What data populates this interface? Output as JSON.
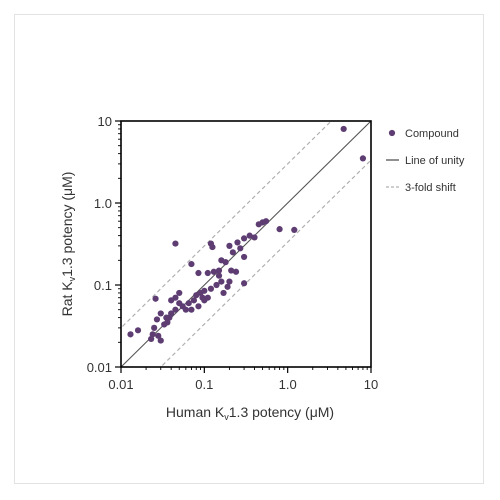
{
  "chart_data": {
    "type": "scatter",
    "xscale": "log",
    "yscale": "log",
    "xlim": [
      0.01,
      10
    ],
    "ylim": [
      0.01,
      10
    ],
    "xticks": [
      "0.01",
      "0.1",
      "1.0",
      "10"
    ],
    "yticks": [
      "0.01",
      "0.1",
      "1.0",
      "10"
    ],
    "xlabel_pre": "Human K",
    "xlabel_sub": "v",
    "xlabel_post": "1.3 potency (μM)",
    "ylabel_pre": "Rat K",
    "ylabel_sub": "v",
    "ylabel_post": "1.3 potency (μM)",
    "grid": false,
    "legend_position": "right",
    "legend": [
      {
        "label": "Compound",
        "kind": "point"
      },
      {
        "label": "Line of unity",
        "kind": "solid"
      },
      {
        "label": "3-fold shift",
        "kind": "dashed"
      }
    ],
    "colors": {
      "point": "#5e3d72",
      "unity": "#555555",
      "shift": "#b0b0b0",
      "axis": "#000000"
    },
    "series": [
      {
        "name": "Compound",
        "points": [
          [
            4.7,
            8.0
          ],
          [
            8.0,
            3.5
          ],
          [
            0.55,
            0.6
          ],
          [
            0.5,
            0.58
          ],
          [
            0.45,
            0.55
          ],
          [
            0.8,
            0.48
          ],
          [
            1.2,
            0.47
          ],
          [
            0.3,
            0.37
          ],
          [
            0.35,
            0.4
          ],
          [
            0.4,
            0.38
          ],
          [
            0.25,
            0.33
          ],
          [
            0.2,
            0.3
          ],
          [
            0.27,
            0.28
          ],
          [
            0.22,
            0.25
          ],
          [
            0.12,
            0.32
          ],
          [
            0.125,
            0.29
          ],
          [
            0.045,
            0.32
          ],
          [
            0.07,
            0.18
          ],
          [
            0.16,
            0.2
          ],
          [
            0.18,
            0.19
          ],
          [
            0.15,
            0.15
          ],
          [
            0.13,
            0.145
          ],
          [
            0.11,
            0.14
          ],
          [
            0.21,
            0.15
          ],
          [
            0.24,
            0.145
          ],
          [
            0.085,
            0.14
          ],
          [
            0.2,
            0.11
          ],
          [
            0.19,
            0.095
          ],
          [
            0.17,
            0.08
          ],
          [
            0.3,
            0.105
          ],
          [
            0.14,
            0.1
          ],
          [
            0.12,
            0.09
          ],
          [
            0.1,
            0.085
          ],
          [
            0.09,
            0.08
          ],
          [
            0.08,
            0.075
          ],
          [
            0.095,
            0.07
          ],
          [
            0.075,
            0.065
          ],
          [
            0.11,
            0.07
          ],
          [
            0.065,
            0.06
          ],
          [
            0.055,
            0.055
          ],
          [
            0.07,
            0.05
          ],
          [
            0.06,
            0.05
          ],
          [
            0.05,
            0.06
          ],
          [
            0.045,
            0.05
          ],
          [
            0.04,
            0.045
          ],
          [
            0.038,
            0.04
          ],
          [
            0.035,
            0.04
          ],
          [
            0.036,
            0.035
          ],
          [
            0.033,
            0.033
          ],
          [
            0.05,
            0.08
          ],
          [
            0.045,
            0.07
          ],
          [
            0.04,
            0.065
          ],
          [
            0.026,
            0.068
          ],
          [
            0.03,
            0.045
          ],
          [
            0.027,
            0.038
          ],
          [
            0.025,
            0.03
          ],
          [
            0.024,
            0.025
          ],
          [
            0.028,
            0.024
          ],
          [
            0.023,
            0.022
          ],
          [
            0.03,
            0.021
          ],
          [
            0.016,
            0.028
          ],
          [
            0.013,
            0.025
          ],
          [
            0.1,
            0.065
          ],
          [
            0.085,
            0.055
          ],
          [
            0.15,
            0.13
          ],
          [
            0.16,
            0.11
          ],
          [
            0.3,
            0.22
          ]
        ]
      }
    ],
    "reference_lines": [
      {
        "name": "Line of unity",
        "factor": 1
      },
      {
        "name": "3-fold shift",
        "factor": 3
      },
      {
        "name": "3-fold shift",
        "factor": 0.3333
      }
    ]
  }
}
